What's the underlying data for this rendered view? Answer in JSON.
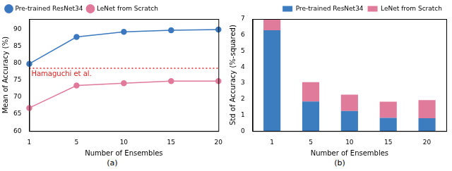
{
  "chart_data": [
    {
      "type": "line",
      "caption": "(a)",
      "xlabel": "Number of Ensembles",
      "ylabel": "Mean of Accuracy (%)",
      "categories": [
        "1",
        "5",
        "10",
        "15",
        "20"
      ],
      "series": [
        {
          "name": "Pre-trained ResNet34",
          "color": "#3b78bf",
          "marker": "o",
          "line_style": "solid",
          "values": [
            79.8,
            87.7,
            89.2,
            89.7,
            89.9
          ]
        },
        {
          "name": "LeNet from Scratch",
          "color": "#e0799a",
          "marker": "o",
          "line_style": "solid",
          "values": [
            66.8,
            73.4,
            74.1,
            74.7,
            74.7
          ]
        }
      ],
      "annotations": [
        {
          "text": "Hamaguchi et al.",
          "y": 78.5,
          "color": "#e02020",
          "line_style": "dotted"
        }
      ],
      "ylim": [
        60,
        93
      ],
      "yticks": [
        60,
        65,
        70,
        75,
        80,
        85,
        90
      ],
      "grid": false,
      "legend": "upper left"
    },
    {
      "type": "bar",
      "caption": "(b)",
      "xlabel": "Number of Ensembles",
      "ylabel": "Std of Accuracy (%-squared)",
      "categories": [
        "1",
        "5",
        "10",
        "15",
        "20"
      ],
      "series": [
        {
          "name": "Pre-trained ResNet34",
          "color": "#3b7dbf",
          "values": [
            6.3,
            1.85,
            1.25,
            0.82,
            0.8
          ]
        },
        {
          "name": "LeNet from Scratch",
          "color": "#e07b9b",
          "values": [
            0.7,
            1.2,
            1.02,
            1.01,
            1.13
          ]
        }
      ],
      "stacked": true,
      "ylim": [
        0,
        7
      ],
      "yticks": [
        0,
        1,
        2,
        3,
        4,
        5,
        6,
        7
      ],
      "grid": false,
      "legend": "upper right"
    }
  ]
}
